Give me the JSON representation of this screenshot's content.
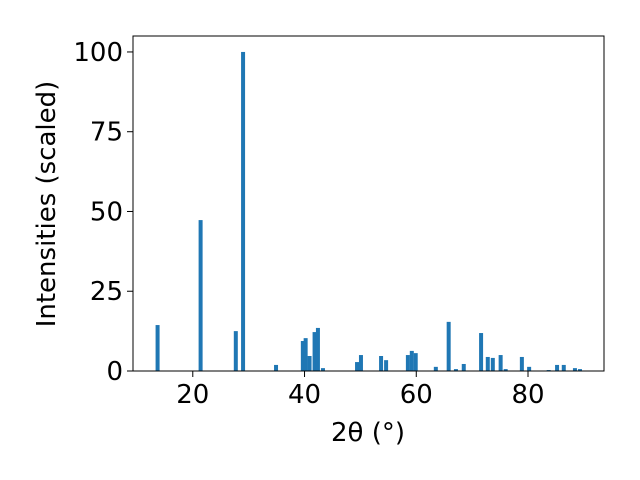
{
  "chart_data": {
    "type": "bar",
    "x_label": "2θ (°)",
    "y_label": "Intensities (scaled)",
    "color": "#1f77b4",
    "x": [
      13.7,
      21.4,
      27.7,
      29.0,
      34.9,
      39.7,
      40.2,
      40.9,
      41.8,
      42.4,
      43.3,
      49.4,
      50.1,
      53.7,
      54.6,
      58.5,
      59.2,
      59.9,
      63.5,
      65.8,
      67.1,
      68.5,
      71.6,
      72.8,
      73.7,
      75.1,
      76.0,
      78.9,
      80.2,
      83.7,
      85.2,
      86.4,
      88.4,
      89.3
    ],
    "values": [
      14.4,
      47.3,
      12.5,
      100,
      1.9,
      9.4,
      10.3,
      4.7,
      12.2,
      13.5,
      0.9,
      2.8,
      5.0,
      4.7,
      3.4,
      5.0,
      6.3,
      5.6,
      1.3,
      15.4,
      0.6,
      2.2,
      11.9,
      4.4,
      4.1,
      5.0,
      0.6,
      4.4,
      1.3,
      0.3,
      1.9,
      1.9,
      0.9,
      0.6
    ],
    "xlim": [
      9.3,
      93.6
    ],
    "xticks": [
      20,
      40,
      60,
      80
    ],
    "ylim": [
      0,
      105
    ],
    "yticks": [
      0,
      25,
      50,
      75,
      100
    ]
  }
}
